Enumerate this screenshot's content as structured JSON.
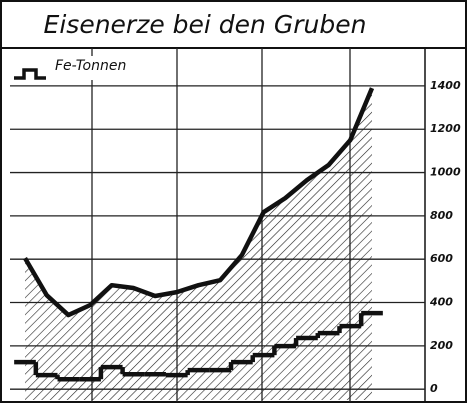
{
  "chart_data": {
    "type": "line",
    "title": "Eisenerze bei den Gruben",
    "categories": [
      null,
      null,
      null,
      null,
      null,
      null,
      null,
      null,
      null,
      null,
      null,
      null,
      null,
      null,
      null,
      null,
      null
    ],
    "series": [
      {
        "color": "#111111",
        "values": [
          605,
          434,
          342,
          388,
          480,
          467,
          430,
          448,
          480,
          503,
          619,
          817,
          882,
          965,
          1035,
          1150,
          1390
        ]
      },
      {
        "name": "Fe-Tonnen",
        "color": "#111111",
        "values": [
          125,
          65,
          46,
          46,
          102,
          69,
          69,
          65,
          88,
          88,
          125,
          157,
          199,
          236,
          259,
          291,
          351
        ]
      }
    ],
    "ylim": [
      -50,
      1575
    ],
    "yticks": [
      0,
      200,
      400,
      600,
      800,
      1000,
      1200,
      1400
    ],
    "grid": true
  }
}
